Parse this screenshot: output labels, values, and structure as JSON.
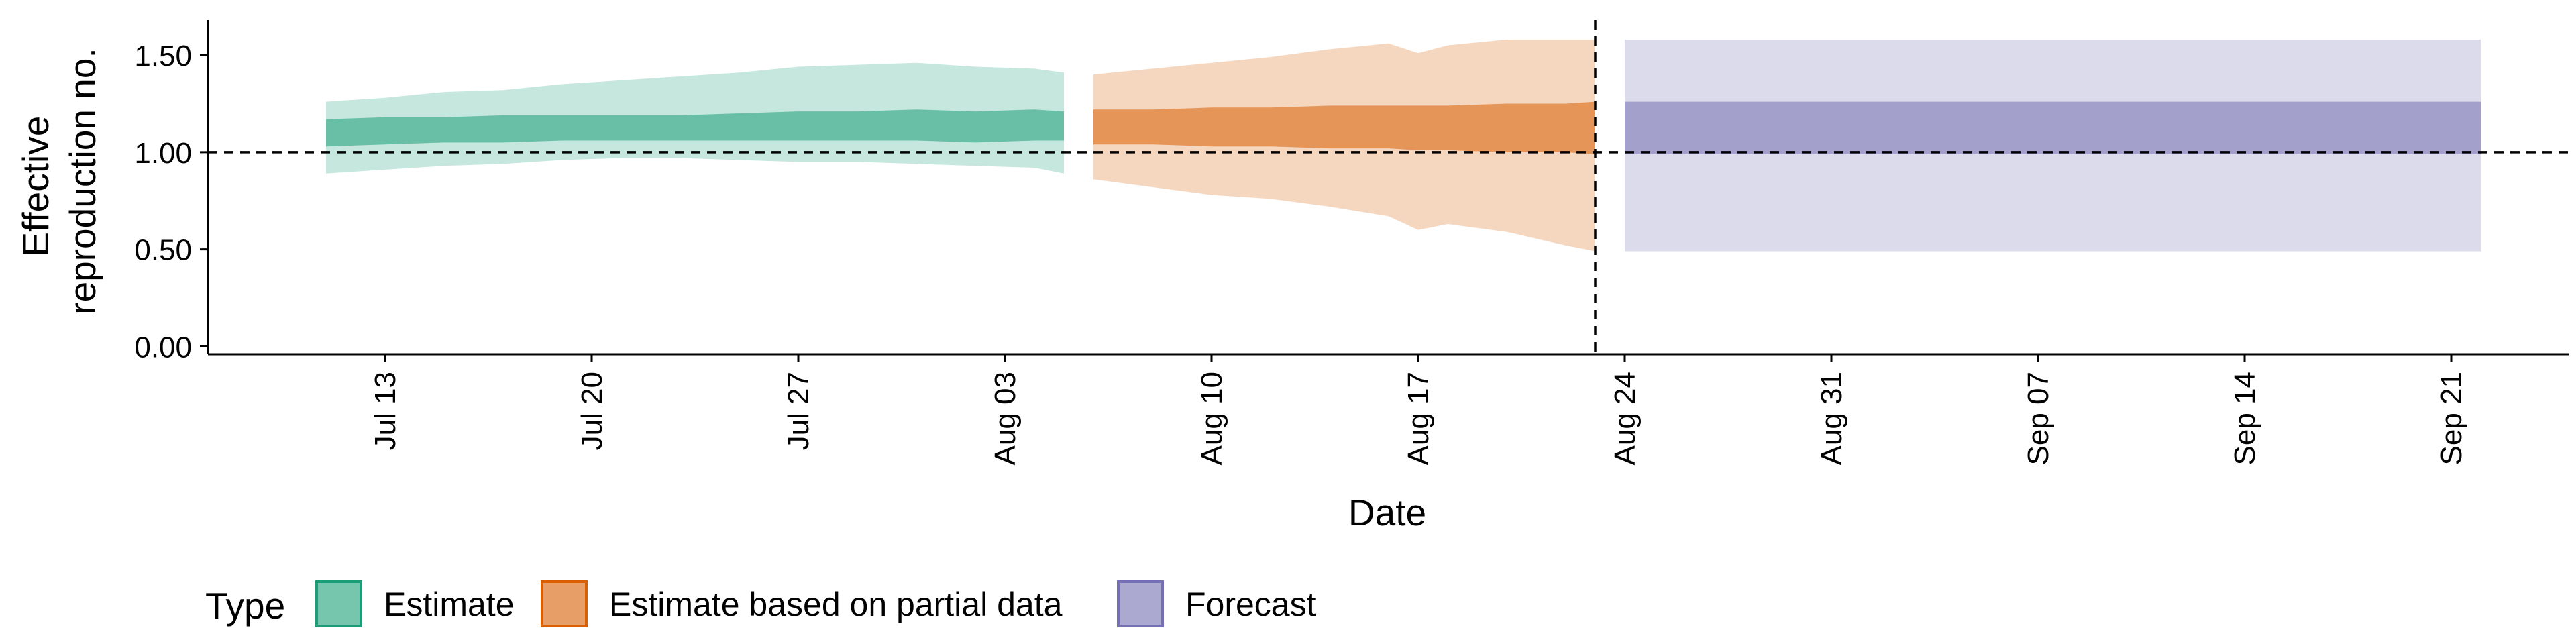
{
  "chart_data": {
    "type": "area",
    "xlabel": "Date",
    "ylabel_lines": [
      "Effective",
      "reproduction no."
    ],
    "ylim": [
      -0.04,
      1.68
    ],
    "xlim": [
      "2020-07-07",
      "2020-09-25"
    ],
    "yticks": [
      0.0,
      0.5,
      1.0,
      1.5
    ],
    "ytick_labels": [
      "0.00",
      "0.50",
      "1.00",
      "1.50"
    ],
    "xticks": [
      "2020-07-13",
      "2020-07-20",
      "2020-07-27",
      "2020-08-03",
      "2020-08-10",
      "2020-08-17",
      "2020-08-24",
      "2020-08-31",
      "2020-09-07",
      "2020-09-14",
      "2020-09-21"
    ],
    "xtick_labels": [
      "Jul 13",
      "Jul 20",
      "Jul 27",
      "Aug 03",
      "Aug 10",
      "Aug 17",
      "Aug 24",
      "Aug 31",
      "Sep 07",
      "Sep 14",
      "Sep 21"
    ],
    "reference_hline": 1.0,
    "reference_vline": "2020-08-23",
    "grid": false,
    "legend_position": "bottom",
    "legend_title": "Type",
    "legend": [
      {
        "label": "Estimate",
        "fill": "#1B9E77",
        "stroke": "#1B9E77"
      },
      {
        "label": "Estimate based on partial data",
        "fill": "#D95F02",
        "stroke": "#D95F02"
      },
      {
        "label": "Forecast",
        "fill": "#7570B3",
        "stroke": "#7570B3"
      }
    ],
    "series": [
      {
        "name": "Estimate",
        "color": "#1B9E77",
        "x": [
          "2020-07-11",
          "2020-07-13",
          "2020-07-15",
          "2020-07-17",
          "2020-07-19",
          "2020-07-21",
          "2020-07-23",
          "2020-07-25",
          "2020-07-27",
          "2020-07-29",
          "2020-07-31",
          "2020-08-02",
          "2020-08-04",
          "2020-08-05"
        ],
        "outer_lower": [
          0.89,
          0.91,
          0.93,
          0.94,
          0.96,
          0.97,
          0.97,
          0.96,
          0.95,
          0.95,
          0.94,
          0.93,
          0.92,
          0.89
        ],
        "outer_upper": [
          1.26,
          1.28,
          1.31,
          1.32,
          1.35,
          1.37,
          1.39,
          1.41,
          1.44,
          1.45,
          1.46,
          1.44,
          1.43,
          1.41
        ],
        "inner_lower": [
          1.03,
          1.04,
          1.05,
          1.05,
          1.06,
          1.06,
          1.06,
          1.06,
          1.06,
          1.06,
          1.06,
          1.05,
          1.06,
          1.06
        ],
        "inner_upper": [
          1.17,
          1.18,
          1.18,
          1.19,
          1.19,
          1.19,
          1.19,
          1.2,
          1.21,
          1.21,
          1.22,
          1.21,
          1.22,
          1.21
        ]
      },
      {
        "name": "Estimate based on partial data",
        "color": "#D95F02",
        "x": [
          "2020-08-06",
          "2020-08-08",
          "2020-08-10",
          "2020-08-12",
          "2020-08-14",
          "2020-08-16",
          "2020-08-17",
          "2020-08-18",
          "2020-08-20",
          "2020-08-22",
          "2020-08-23"
        ],
        "outer_lower": [
          0.86,
          0.82,
          0.78,
          0.76,
          0.72,
          0.67,
          0.6,
          0.63,
          0.59,
          0.52,
          0.49
        ],
        "outer_upper": [
          1.4,
          1.43,
          1.46,
          1.49,
          1.53,
          1.56,
          1.51,
          1.55,
          1.58,
          1.58,
          1.58
        ],
        "inner_lower": [
          1.04,
          1.04,
          1.03,
          1.03,
          1.02,
          1.02,
          1.01,
          1.01,
          1.0,
          1.0,
          0.99
        ],
        "inner_upper": [
          1.22,
          1.22,
          1.23,
          1.23,
          1.24,
          1.24,
          1.24,
          1.24,
          1.25,
          1.25,
          1.26
        ]
      },
      {
        "name": "Forecast",
        "color": "#7570B3",
        "x": [
          "2020-08-24",
          "2020-09-22"
        ],
        "outer_lower": [
          0.49,
          0.49
        ],
        "outer_upper": [
          1.58,
          1.58
        ],
        "inner_lower": [
          0.99,
          0.99
        ],
        "inner_upper": [
          1.26,
          1.26
        ]
      }
    ]
  }
}
